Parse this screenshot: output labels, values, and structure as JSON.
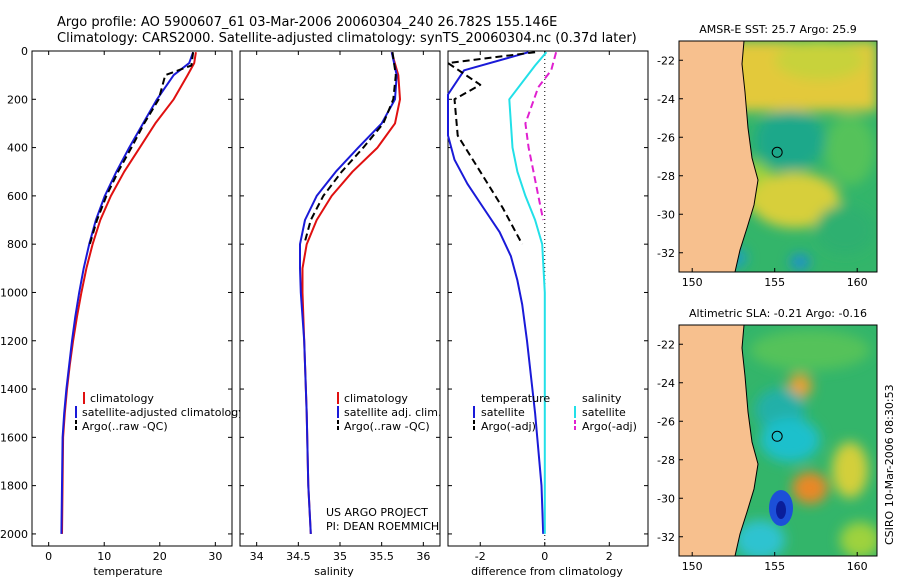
{
  "header": {
    "title_line1": "Argo profile: AO 5900607_61 03-Mar-2006 20060304_240 26.782S 155.146E",
    "title_line2": "Climatology: CARS2000. Satellite-adjusted climatology: synTS_20060304.nc (0.37d later)"
  },
  "side_stamp": "CSIRO 10-Mar-2006 08:30:53",
  "project_note": [
    "US ARGO PROJECT",
    "PI: DEAN ROEMMICH"
  ],
  "colors": {
    "climatology": "#e01010",
    "satellite": "#1a1ad8",
    "argo": "#000000",
    "sal_satellite": "#22e0e8",
    "sal_argo": "#e020d0",
    "land": "#f7c08e"
  },
  "chart_data": [
    {
      "type": "line",
      "name": "temperature-profile",
      "xlabel": "temperature",
      "ylabel": "",
      "xlim": [
        -3,
        33
      ],
      "ylim": [
        2050,
        0
      ],
      "xticks": [
        "0",
        "10",
        "20",
        "30"
      ],
      "yticks": [
        "0",
        "200",
        "400",
        "600",
        "800",
        "1000",
        "1200",
        "1400",
        "1600",
        "1800",
        "2000"
      ],
      "legend": [
        "climatology",
        "satellite-adjusted climatology",
        "Argo(..raw -QC)"
      ],
      "series": [
        {
          "name": "climatology",
          "style": "solid",
          "color": "#e01010",
          "x": [
            26.5,
            26.2,
            25.0,
            22.5,
            19.2,
            16.4,
            13.6,
            11.2,
            9.3,
            7.9,
            6.8,
            5.9,
            5.1,
            4.4,
            3.8,
            3.3,
            2.9,
            2.6,
            2.4
          ],
          "y": [
            5,
            50,
            100,
            200,
            300,
            400,
            500,
            600,
            700,
            800,
            900,
            1000,
            1100,
            1200,
            1300,
            1400,
            1500,
            1600,
            2000
          ]
        },
        {
          "name": "satellite-adjusted climatology",
          "style": "solid",
          "color": "#1a1ad8",
          "x": [
            26.0,
            25.3,
            22.5,
            19.5,
            17.0,
            14.5,
            12.2,
            10.1,
            8.5,
            7.3,
            6.3,
            5.5,
            4.8,
            4.2,
            3.7,
            3.2,
            2.8,
            2.5,
            2.3
          ],
          "y": [
            5,
            50,
            100,
            200,
            300,
            400,
            500,
            600,
            700,
            800,
            900,
            1000,
            1100,
            1200,
            1300,
            1400,
            1500,
            1600,
            2000
          ]
        },
        {
          "name": "Argo(..raw -QC)",
          "style": "dashed",
          "color": "#000000",
          "x": [
            26.0,
            25.7,
            21.0,
            19.8,
            17.2,
            14.9,
            12.5,
            10.4,
            8.7,
            7.4
          ],
          "y": [
            5,
            60,
            100,
            200,
            300,
            400,
            500,
            600,
            700,
            800
          ]
        }
      ]
    },
    {
      "type": "line",
      "name": "salinity-profile",
      "xlabel": "salinity",
      "ylabel": "",
      "xlim": [
        33.8,
        36.2
      ],
      "ylim": [
        2050,
        0
      ],
      "xticks": [
        "34",
        "34.5",
        "35",
        "35.5",
        "36"
      ],
      "legend": [
        "climatology",
        "satellite adj. clim.",
        "Argo(..raw -QC)"
      ],
      "series": [
        {
          "name": "climatology",
          "style": "solid",
          "color": "#e01010",
          "x": [
            35.62,
            35.7,
            35.72,
            35.66,
            35.45,
            35.15,
            34.9,
            34.72,
            34.6,
            34.55,
            34.55,
            34.57,
            34.6,
            34.62,
            34.65
          ],
          "y": [
            5,
            100,
            200,
            300,
            400,
            500,
            600,
            700,
            800,
            900,
            1000,
            1200,
            1500,
            1800,
            2000
          ]
        },
        {
          "name": "satellite adj. clim.",
          "style": "solid",
          "color": "#1a1ad8",
          "x": [
            35.62,
            35.68,
            35.66,
            35.5,
            35.22,
            34.95,
            34.72,
            34.58,
            34.52,
            34.52,
            34.53,
            34.57,
            34.6,
            34.62,
            34.65
          ],
          "y": [
            5,
            100,
            200,
            300,
            400,
            500,
            600,
            700,
            800,
            900,
            1000,
            1200,
            1500,
            1800,
            2000
          ]
        },
        {
          "name": "Argo(..raw -QC)",
          "style": "dashed",
          "color": "#000000",
          "x": [
            35.63,
            35.67,
            35.64,
            35.52,
            35.28,
            35.02,
            34.8,
            34.65,
            34.57
          ],
          "y": [
            5,
            100,
            200,
            300,
            400,
            500,
            600,
            700,
            800
          ]
        }
      ]
    },
    {
      "type": "line",
      "name": "difference-profile",
      "xlabel": "difference from climatology",
      "ylabel": "",
      "xlim": [
        -3,
        3.2
      ],
      "ylim": [
        2050,
        0
      ],
      "xticks": [
        "-2",
        "0",
        "2"
      ],
      "legend_headers": [
        "temperature",
        "salinity"
      ],
      "legend": [
        "satellite",
        "Argo(-adj)",
        "satellite",
        "Argo(-adj)"
      ],
      "series": [
        {
          "name": "temperature satellite",
          "style": "solid",
          "color": "#1a1ad8",
          "x": [
            -0.5,
            -2.5,
            -3.0,
            -3.0,
            -2.8,
            -2.4,
            -1.9,
            -1.4,
            -1.05,
            -0.85,
            -0.7,
            -0.55,
            -0.3,
            -0.1,
            -0.05
          ],
          "y": [
            5,
            80,
            180,
            350,
            450,
            550,
            650,
            750,
            850,
            950,
            1050,
            1200,
            1500,
            1800,
            2000
          ]
        },
        {
          "name": "temperature Argo(-adj)",
          "style": "dashed",
          "color": "#000000",
          "x": [
            -0.3,
            -3.0,
            -2.0,
            -2.8,
            -2.7,
            -2.0,
            -1.3,
            -0.9,
            -0.7
          ],
          "y": [
            5,
            50,
            140,
            200,
            350,
            500,
            650,
            750,
            800
          ]
        },
        {
          "name": "salinity satellite",
          "style": "solid",
          "color": "#22e0e8",
          "x": [
            0.05,
            -0.3,
            -1.1,
            -1.0,
            -0.85,
            -0.6,
            -0.3,
            -0.08,
            0.0,
            0.0
          ],
          "y": [
            5,
            60,
            200,
            400,
            500,
            600,
            700,
            800,
            1000,
            2000
          ]
        },
        {
          "name": "salinity Argo(-adj)",
          "style": "dashed",
          "color": "#e020d0",
          "x": [
            0.35,
            0.2,
            -0.2,
            -0.6,
            -0.5,
            -0.35,
            -0.2,
            -0.05
          ],
          "y": [
            5,
            80,
            150,
            300,
            400,
            500,
            600,
            700
          ]
        }
      ]
    },
    {
      "type": "heatmap",
      "name": "sst-map",
      "title": "AMSR-E SST: 25.7 Argo: 25.9",
      "xlim": [
        149.2,
        161.2
      ],
      "ylim": [
        -33,
        -21
      ],
      "xticks": [
        "150",
        "155",
        "160"
      ],
      "yticks": [
        "-22",
        "-24",
        "-26",
        "-28",
        "-30",
        "-32"
      ],
      "marker": {
        "lon": 155.15,
        "lat": -26.78
      }
    },
    {
      "type": "heatmap",
      "name": "sla-map",
      "title": "Altimetric SLA: -0.21 Argo: -0.16",
      "xlim": [
        149.2,
        161.2
      ],
      "ylim": [
        -33,
        -21
      ],
      "xticks": [
        "150",
        "155",
        "160"
      ],
      "yticks": [
        "-22",
        "-24",
        "-26",
        "-28",
        "-30",
        "-32"
      ],
      "marker": {
        "lon": 155.15,
        "lat": -26.78
      }
    }
  ]
}
